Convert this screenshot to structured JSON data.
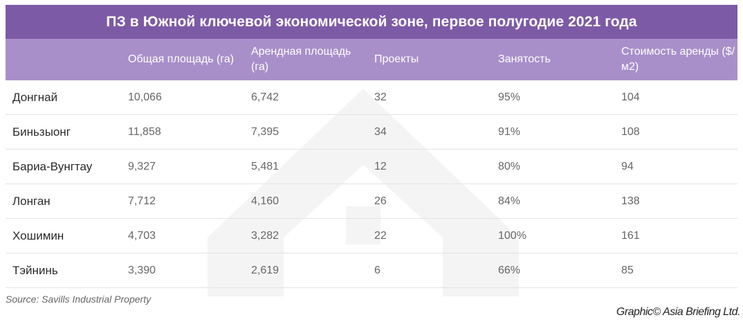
{
  "chart_data": {
    "type": "table",
    "title": "ПЗ в Южной ключевой экономической зоне, первое полугодие 2021 года",
    "columns": [
      {
        "key": "province",
        "label": ""
      },
      {
        "key": "total_area",
        "label": "Общая площадь (га)"
      },
      {
        "key": "leasable_area",
        "label": "Арендная площадь (га)"
      },
      {
        "key": "projects",
        "label": "Проекты"
      },
      {
        "key": "occupancy",
        "label": "Занятость"
      },
      {
        "key": "rent",
        "label": "Стоимость аренды ($/м2)"
      }
    ],
    "rows": [
      {
        "province": "Донгнай",
        "total_area": "10,066",
        "leasable_area": "6,742",
        "projects": "32",
        "occupancy": "95%",
        "rent": "104"
      },
      {
        "province": "Биньзыонг",
        "total_area": "11,858",
        "leasable_area": "7,395",
        "projects": "34",
        "occupancy": "91%",
        "rent": "108"
      },
      {
        "province": "Бариа-Вунгтау",
        "total_area": "9,327",
        "leasable_area": "5,481",
        "projects": "12",
        "occupancy": "80%",
        "rent": "94"
      },
      {
        "province": "Лонган",
        "total_area": "7,712",
        "leasable_area": "4,160",
        "projects": "26",
        "occupancy": "84%",
        "rent": "138"
      },
      {
        "province": "Хошимин",
        "total_area": "4,703",
        "leasable_area": "3,282",
        "projects": "22",
        "occupancy": "100%",
        "rent": "161"
      },
      {
        "province": "Тэйнинь",
        "total_area": "3,390",
        "leasable_area": "2,619",
        "projects": "6",
        "occupancy": "66%",
        "rent": "85"
      }
    ]
  },
  "source": "Source: Savills Industrial Property",
  "credit": "Graphic© Asia Briefing Ltd.",
  "colors": {
    "title_bg": "#7d5aa6",
    "header_bg": "#a98fca",
    "row_divider": "#e3e3e3"
  }
}
